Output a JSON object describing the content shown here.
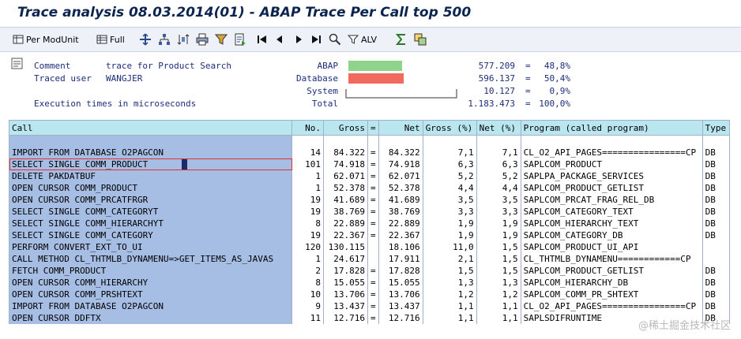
{
  "title": "Trace analysis 08.03.2014(01) - ABAP Trace Per Call top 500",
  "toolbar": {
    "per_mod_unit": "Per ModUnit",
    "full": "Full",
    "alv": "ALV"
  },
  "header": {
    "comment_label": "Comment",
    "comment_value": "trace for Product Search",
    "user_label": "Traced user",
    "user_value": "WANGJER",
    "exec_label": "Execution times in microseconds"
  },
  "summary": [
    {
      "label": "ABAP",
      "value": "577.209",
      "eq": "=",
      "pct": "48,8%",
      "color": "#8fd48a",
      "fraction": 0.488
    },
    {
      "label": "Database",
      "value": "596.137",
      "eq": "=",
      "pct": "50,4%",
      "color": "#f26a5e",
      "fraction": 0.504
    },
    {
      "label": "System",
      "value": "10.127",
      "eq": "=",
      "pct": "0,9%",
      "color": "",
      "fraction": 0.009
    },
    {
      "label": "Total",
      "value": "1.183.473",
      "eq": "=",
      "pct": "100,0%",
      "color": "",
      "fraction": 1.0
    }
  ],
  "grid": {
    "columns": [
      "Call",
      "No.",
      "Gross",
      "=",
      "Net",
      "Gross (%)",
      "Net (%)",
      "Program (called program)",
      "Type"
    ],
    "rows": [
      [
        "IMPORT FROM DATABASE O2PAGCON",
        "14",
        "84.322",
        "=",
        "84.322",
        "7,1",
        "7,1",
        "CL_O2_API_PAGES================CP",
        "DB"
      ],
      [
        "SELECT SINGLE COMM_PRODUCT",
        "101",
        "74.918",
        "=",
        "74.918",
        "6,3",
        "6,3",
        "SAPLCOM_PRODUCT",
        "DB"
      ],
      [
        "DELETE PAKDATBUF",
        "1",
        "62.071",
        "=",
        "62.071",
        "5,2",
        "5,2",
        "SAPLPA_PACKAGE_SERVICES",
        "DB"
      ],
      [
        "OPEN CURSOR COMM_PRODUCT",
        "1",
        "52.378",
        "=",
        "52.378",
        "4,4",
        "4,4",
        "SAPLCOM_PRODUCT_GETLIST",
        "DB"
      ],
      [
        "OPEN CURSOR COMM_PRCATFRGR",
        "19",
        "41.689",
        "=",
        "41.689",
        "3,5",
        "3,5",
        "SAPLCOM_PRCAT_FRAG_REL_DB",
        "DB"
      ],
      [
        "SELECT SINGLE COMM_CATEGORYT",
        "19",
        "38.769",
        "=",
        "38.769",
        "3,3",
        "3,3",
        "SAPLCOM_CATEGORY_TEXT",
        "DB"
      ],
      [
        "SELECT SINGLE COMM_HIERARCHYT",
        "8",
        "22.889",
        "=",
        "22.889",
        "1,9",
        "1,9",
        "SAPLCOM_HIERARCHY_TEXT",
        "DB"
      ],
      [
        "SELECT SINGLE COMM_CATEGORY",
        "19",
        "22.367",
        "=",
        "22.367",
        "1,9",
        "1,9",
        "SAPLCOM_CATEGORY_DB",
        "DB"
      ],
      [
        "PERFORM CONVERT_EXT_TO_UI",
        "120",
        "130.115",
        "",
        "18.106",
        "11,0",
        "1,5",
        "SAPLCOM_PRODUCT_UI_API",
        ""
      ],
      [
        "CALL METHOD CL_THTMLB_DYNAMENU=>GET_ITEMS_AS_JAVAS",
        "1",
        "24.617",
        "",
        "17.911",
        "2,1",
        "1,5",
        "CL_THTMLB_DYNAMENU============CP",
        ""
      ],
      [
        "FETCH COMM_PRODUCT",
        "2",
        "17.828",
        "=",
        "17.828",
        "1,5",
        "1,5",
        "SAPLCOM_PRODUCT_GETLIST",
        "DB"
      ],
      [
        "OPEN CURSOR COMM_HIERARCHY",
        "8",
        "15.055",
        "=",
        "15.055",
        "1,3",
        "1,3",
        "SAPLCOM_HIERARCHY_DB",
        "DB"
      ],
      [
        "OPEN CURSOR COMM_PRSHTEXT",
        "10",
        "13.706",
        "=",
        "13.706",
        "1,2",
        "1,2",
        "SAPLCOM_COMM_PR_SHTEXT",
        "DB"
      ],
      [
        "IMPORT FROM DATABASE O2PAGCON",
        "9",
        "13.437",
        "=",
        "13.437",
        "1,1",
        "1,1",
        "CL_O2_API_PAGES================CP",
        "DB"
      ],
      [
        "OPEN CURSOR DDFTX",
        "11",
        "12.716",
        "=",
        "12.716",
        "1,1",
        "1,1",
        "SAPLSDIFRUNTIME",
        "DB"
      ]
    ]
  },
  "watermark": "@稀土掘金技术社区"
}
